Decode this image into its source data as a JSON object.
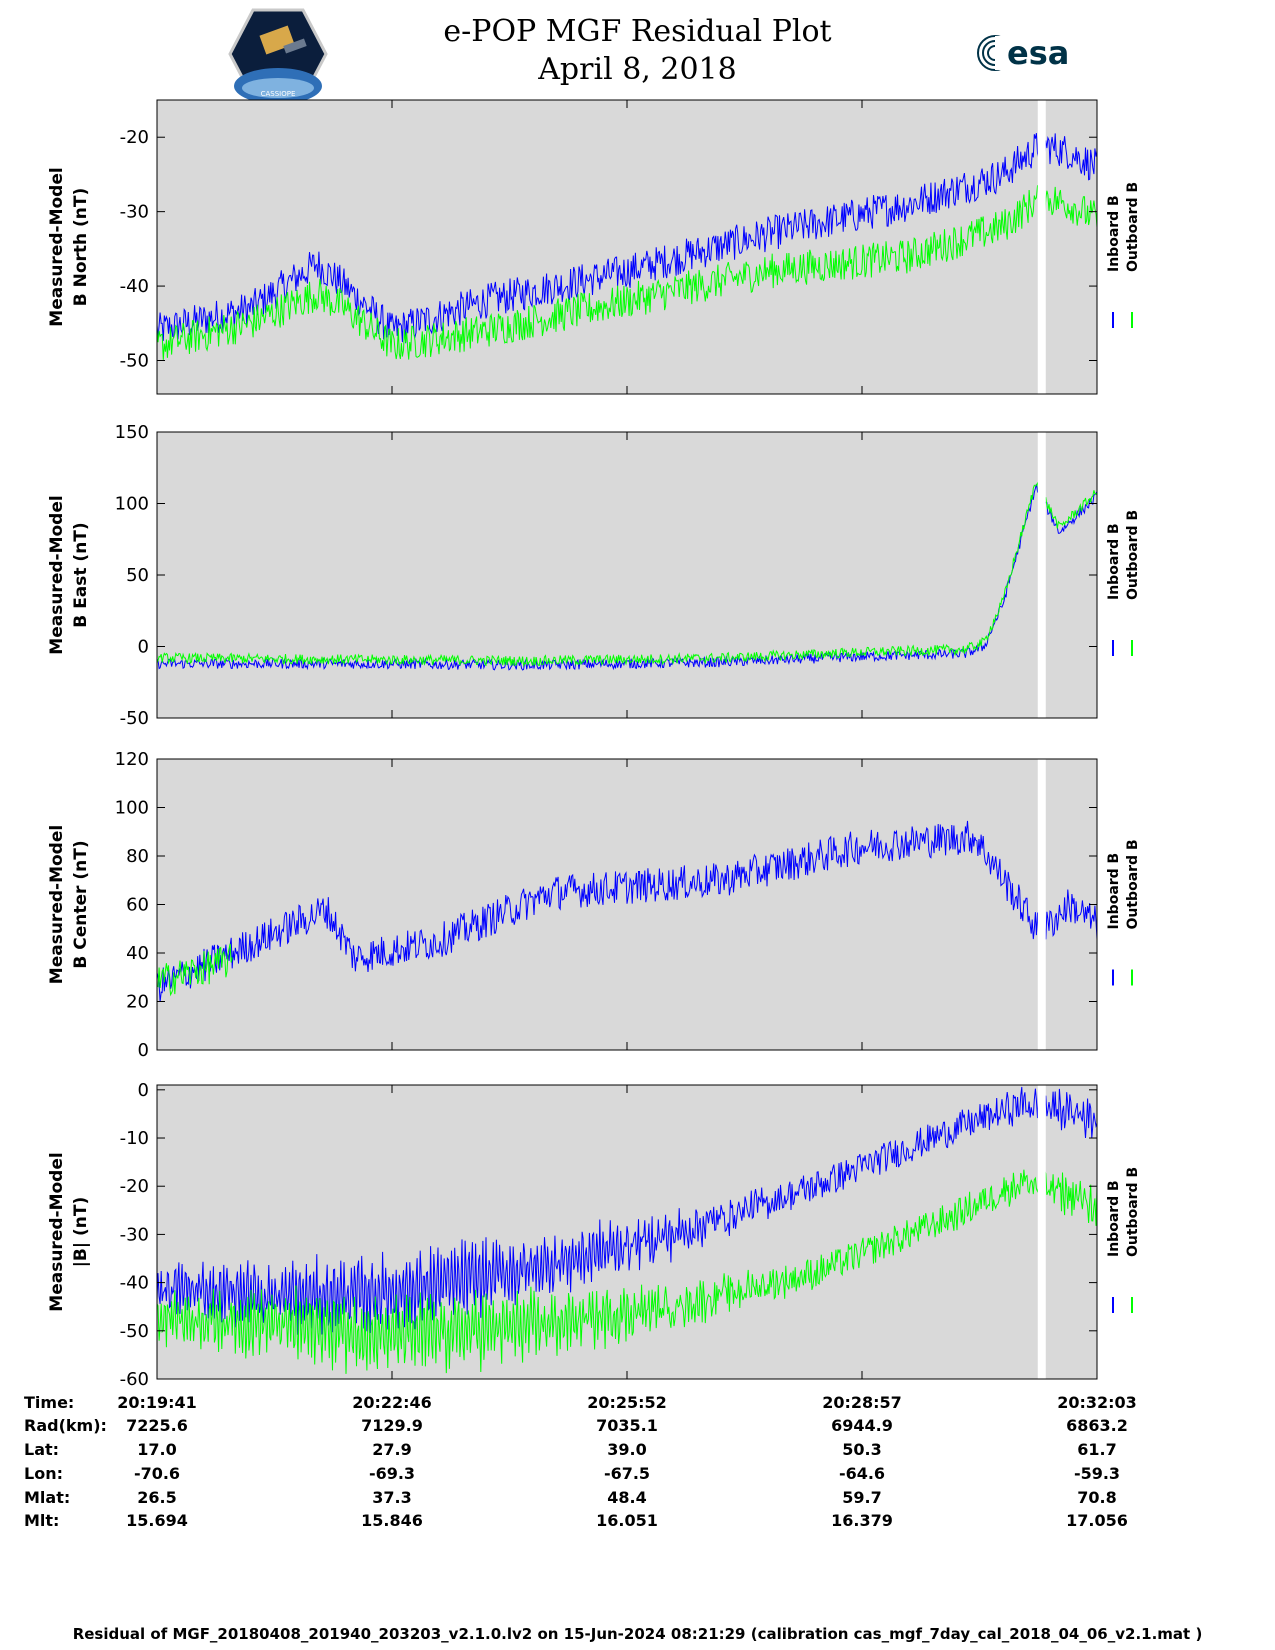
{
  "title_line1": "e-POP MGF Residual Plot",
  "title_line2": "April 8, 2018",
  "esa_logo_text": "esa",
  "logo_badge_text": "CASSIOPE",
  "colors": {
    "inboard": "#0000ff",
    "outboard": "#00ff00",
    "panel_bg": "#d9d9d9",
    "gap": "#ffffff"
  },
  "legend": {
    "inboard": "Inboard B",
    "outboard": "Outboard B"
  },
  "chart_data": [
    {
      "type": "line",
      "ylabel": [
        "Measured-Model",
        "B North (nT)"
      ],
      "ylim": [
        -54.5,
        -15
      ],
      "yticks": [
        -50,
        -40,
        -30,
        -20
      ],
      "x": [
        0,
        0.1,
        0.17,
        0.2,
        0.25,
        0.35,
        0.5,
        0.65,
        0.8,
        0.9,
        0.94,
        0.97,
        1.0
      ],
      "series": [
        {
          "name": "Inboard B",
          "values": [
            -46,
            -43,
            -37,
            -40,
            -46,
            -42,
            -38,
            -33,
            -29,
            -25,
            -21,
            -22,
            -24
          ]
        },
        {
          "name": "Outboard B",
          "values": [
            -48,
            -45,
            -41,
            -43,
            -48,
            -46,
            -42,
            -38,
            -36,
            -32,
            -28,
            -29,
            -31
          ]
        }
      ]
    },
    {
      "type": "line",
      "ylabel": [
        "Measured-Model",
        "B East (nT)"
      ],
      "ylim": [
        -50,
        150
      ],
      "yticks": [
        -50,
        0,
        50,
        100,
        150
      ],
      "x": [
        0,
        0.2,
        0.4,
        0.6,
        0.75,
        0.86,
        0.88,
        0.9,
        0.935,
        0.96,
        1.0
      ],
      "series": [
        {
          "name": "Inboard B",
          "values": [
            -12,
            -12,
            -13,
            -11,
            -7,
            -5,
            0,
            30,
            112,
            80,
            105
          ]
        },
        {
          "name": "Outboard B",
          "values": [
            -8,
            -9,
            -10,
            -8,
            -4,
            -2,
            3,
            32,
            115,
            83,
            108
          ]
        }
      ]
    },
    {
      "type": "line",
      "ylabel": [
        "Measured-Model",
        "B Center (nT)"
      ],
      "ylim": [
        0,
        120
      ],
      "yticks": [
        0,
        20,
        40,
        60,
        80,
        100,
        120
      ],
      "x": [
        0,
        0.08,
        0.18,
        0.21,
        0.3,
        0.42,
        0.6,
        0.75,
        0.87,
        0.91,
        0.94,
        0.97,
        1.0
      ],
      "series": [
        {
          "name": "Inboard B",
          "values": [
            26,
            40,
            58,
            38,
            45,
            65,
            70,
            84,
            88,
            65,
            48,
            60,
            52
          ]
        },
        {
          "name": "Outboard B",
          "values": [
            28,
            37,
            null,
            null,
            null,
            null,
            null,
            null,
            null,
            null,
            null,
            null,
            null
          ]
        }
      ]
    },
    {
      "type": "line",
      "ylabel": [
        "Measured-Model",
        "|B| (nT)"
      ],
      "ylim": [
        -60,
        1
      ],
      "yticks": [
        -60,
        -50,
        -40,
        -30,
        -20,
        -10,
        0
      ],
      "x": [
        0,
        0.15,
        0.25,
        0.4,
        0.55,
        0.7,
        0.85,
        0.92,
        0.96,
        1.0
      ],
      "series": [
        {
          "name": "Inboard B",
          "values": [
            -41,
            -43,
            -42,
            -37,
            -30,
            -20,
            -8,
            -3,
            -4,
            -6
          ]
        },
        {
          "name": "Outboard B",
          "values": [
            -47,
            -49,
            -51,
            -49,
            -45,
            -38,
            -26,
            -19,
            -21,
            -24
          ]
        }
      ]
    }
  ],
  "info_table": {
    "labels": [
      "Time:",
      "Rad(km):",
      "Lat:",
      "Lon:",
      "Mlat:",
      "Mlt:"
    ],
    "columns": [
      [
        "20:19:41",
        "7225.6",
        "17.0",
        "-70.6",
        "26.5",
        "15.694"
      ],
      [
        "20:22:46",
        "7129.9",
        "27.9",
        "-69.3",
        "37.3",
        "15.846"
      ],
      [
        "20:25:52",
        "7035.1",
        "39.0",
        "-67.5",
        "48.4",
        "16.051"
      ],
      [
        "20:28:57",
        "6944.9",
        "50.3",
        "-64.6",
        "59.7",
        "16.379"
      ],
      [
        "20:32:03",
        "6863.2",
        "61.7",
        "-59.3",
        "70.8",
        "17.056"
      ]
    ]
  },
  "footer": "Residual of MGF_20180408_201940_203203_v2.1.0.lv2 on 15-Jun-2024 08:21:29 (calibration cas_mgf_7day_cal_2018_04_06_v2.1.mat )"
}
